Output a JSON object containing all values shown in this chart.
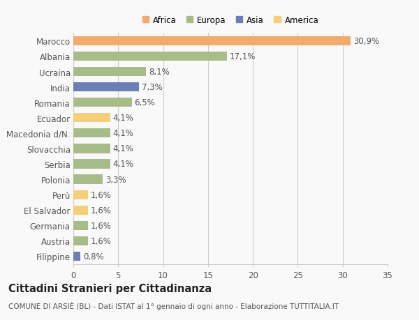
{
  "categories": [
    "Marocco",
    "Albania",
    "Ucraina",
    "India",
    "Romania",
    "Ecuador",
    "Macedonia d/N.",
    "Slovacchia",
    "Serbia",
    "Polonia",
    "Perù",
    "El Salvador",
    "Germania",
    "Austria",
    "Filippine"
  ],
  "values": [
    30.9,
    17.1,
    8.1,
    7.3,
    6.5,
    4.1,
    4.1,
    4.1,
    4.1,
    3.3,
    1.6,
    1.6,
    1.6,
    1.6,
    0.8
  ],
  "labels": [
    "30,9%",
    "17,1%",
    "8,1%",
    "7,3%",
    "6,5%",
    "4,1%",
    "4,1%",
    "4,1%",
    "4,1%",
    "3,3%",
    "1,6%",
    "1,6%",
    "1,6%",
    "1,6%",
    "0,8%"
  ],
  "colors": [
    "#F4A96D",
    "#A8BC8A",
    "#A8BC8A",
    "#6B7FB5",
    "#A8BC8A",
    "#F5CE7A",
    "#A8BC8A",
    "#A8BC8A",
    "#A8BC8A",
    "#A8BC8A",
    "#F5CE7A",
    "#F5CE7A",
    "#A8BC8A",
    "#A8BC8A",
    "#6B7FB5"
  ],
  "legend_labels": [
    "Africa",
    "Europa",
    "Asia",
    "America"
  ],
  "legend_colors": [
    "#F4A96D",
    "#A8BC8A",
    "#6B7FB5",
    "#F5CE7A"
  ],
  "xlim": [
    0,
    35
  ],
  "xticks": [
    0,
    5,
    10,
    15,
    20,
    25,
    30,
    35
  ],
  "title": "Cittadini Stranieri per Cittadinanza",
  "subtitle": "COMUNE DI ARSIÈ (BL) - Dati ISTAT al 1° gennaio di ogni anno - Elaborazione TUTTITALIA.IT",
  "bg_color": "#f9f9f9",
  "grid_color": "#cccccc",
  "bar_height": 0.6,
  "label_fontsize": 8.5,
  "tick_fontsize": 8.5,
  "title_fontsize": 10.5,
  "subtitle_fontsize": 7.5
}
